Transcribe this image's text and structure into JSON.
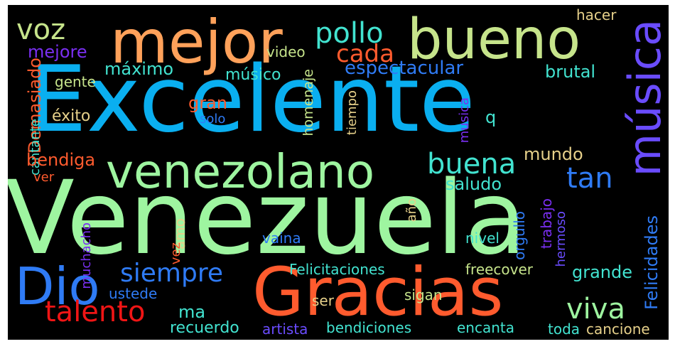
{
  "colors": {
    "cyan_blue": "#0aaff0",
    "mint": "#9ef5a0",
    "light_green": "#c6e48b",
    "orange": "#ffa15a",
    "red_orange": "#ff5b2e",
    "red": "#f01515",
    "blue": "#2f7bf5",
    "indigo": "#6a4cff",
    "purple": "#7a2ff2",
    "teal": "#42e3d0",
    "tan": "#e6d08a"
  },
  "words": [
    {
      "text": "Excelente",
      "color": "cyan_blue"
    },
    {
      "text": "Venezuela",
      "color": "mint"
    },
    {
      "text": "Gracias",
      "color": "red_orange"
    },
    {
      "text": "mejor",
      "color": "orange"
    },
    {
      "text": "bueno",
      "color": "light_green"
    },
    {
      "text": "venezolano",
      "color": "mint"
    },
    {
      "text": "música",
      "color": "indigo"
    },
    {
      "text": "Dio",
      "color": "blue"
    },
    {
      "text": "siempre",
      "color": "blue"
    },
    {
      "text": "talento",
      "color": "red"
    },
    {
      "text": "pollo",
      "color": "teal"
    },
    {
      "text": "voz",
      "color": "light_green"
    },
    {
      "text": "cada",
      "color": "red_orange"
    },
    {
      "text": "buena",
      "color": "teal"
    },
    {
      "text": "viva",
      "color": "mint"
    },
    {
      "text": "tan",
      "color": "blue"
    },
    {
      "text": "espectacular",
      "color": "blue"
    },
    {
      "text": "mejore",
      "color": "purple"
    },
    {
      "text": "máximo",
      "color": "teal"
    },
    {
      "text": "video",
      "color": "light_green"
    },
    {
      "text": "hacer",
      "color": "tan"
    },
    {
      "text": "brutal",
      "color": "teal"
    },
    {
      "text": "Demasiado",
      "color": "red_orange"
    },
    {
      "text": "gente",
      "color": "light_green"
    },
    {
      "text": "músico",
      "color": "teal"
    },
    {
      "text": "homenaje",
      "color": "light_green"
    },
    {
      "text": "éxito",
      "color": "tan"
    },
    {
      "text": "gran",
      "color": "red_orange"
    },
    {
      "text": "solo",
      "color": "blue"
    },
    {
      "text": "tiempo",
      "color": "tan"
    },
    {
      "text": "q",
      "color": "teal"
    },
    {
      "text": "cantante",
      "color": "teal"
    },
    {
      "text": "musica",
      "color": "purple"
    },
    {
      "text": "bendiga",
      "color": "red_orange"
    },
    {
      "text": "mundo",
      "color": "tan"
    },
    {
      "text": "ver",
      "color": "red_orange"
    },
    {
      "text": "saludo",
      "color": "teal"
    },
    {
      "text": "Felicidades",
      "color": "blue"
    },
    {
      "text": "año",
      "color": "tan"
    },
    {
      "text": "muchacho",
      "color": "purple"
    },
    {
      "text": "amo",
      "color": "tan"
    },
    {
      "text": "vez",
      "color": "red_orange"
    },
    {
      "text": "vaina",
      "color": "blue"
    },
    {
      "text": "nivel",
      "color": "teal"
    },
    {
      "text": "orgullo",
      "color": "blue"
    },
    {
      "text": "trabajo",
      "color": "purple"
    },
    {
      "text": "hermoso",
      "color": "indigo"
    },
    {
      "text": "grande",
      "color": "teal"
    },
    {
      "text": "Felicitaciones",
      "color": "teal"
    },
    {
      "text": "freecover",
      "color": "light_green"
    },
    {
      "text": "ustede",
      "color": "blue"
    },
    {
      "text": "ma",
      "color": "teal"
    },
    {
      "text": "ser",
      "color": "tan"
    },
    {
      "text": "sigan",
      "color": "light_green"
    },
    {
      "text": "recuerdo",
      "color": "teal"
    },
    {
      "text": "artista",
      "color": "indigo"
    },
    {
      "text": "bendiciones",
      "color": "teal"
    },
    {
      "text": "encanta",
      "color": "teal"
    },
    {
      "text": "toda",
      "color": "teal"
    },
    {
      "text": "cancione",
      "color": "tan"
    }
  ]
}
